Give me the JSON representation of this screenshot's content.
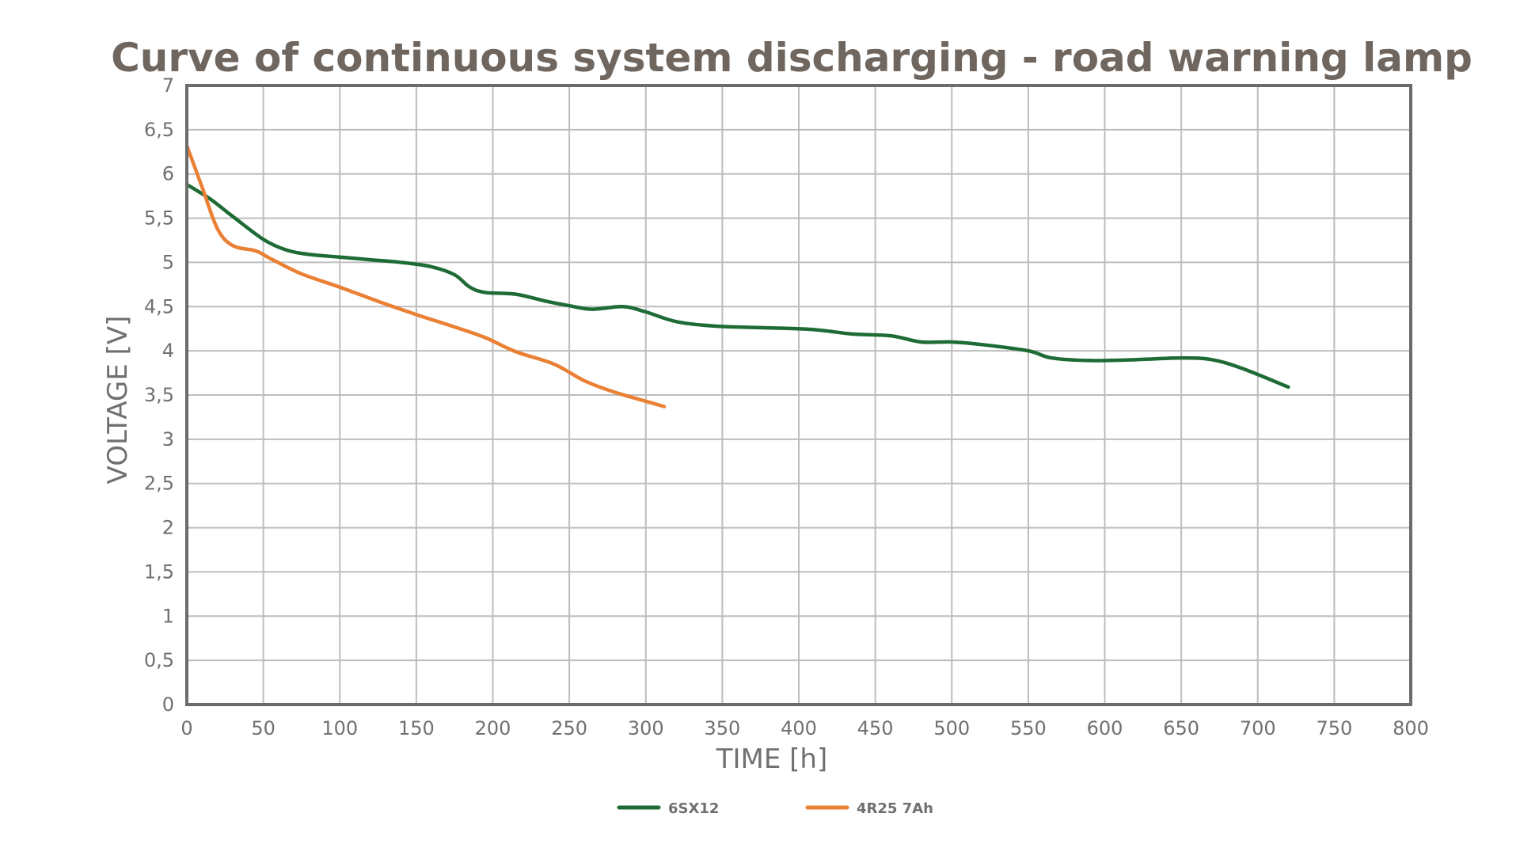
{
  "chart_data": {
    "type": "line",
    "title": "Curve of continuous system discharging - road warning lamp",
    "xlabel": "TIME [h]",
    "ylabel": "VOLTAGE [V]",
    "xlim": [
      0,
      800
    ],
    "ylim": [
      0,
      7
    ],
    "x_ticks": [
      0,
      50,
      100,
      150,
      200,
      250,
      300,
      350,
      400,
      450,
      500,
      550,
      600,
      650,
      700,
      750,
      800
    ],
    "y_ticks": [
      0,
      0.5,
      1,
      1.5,
      2,
      2.5,
      3,
      3.5,
      4,
      4.5,
      5,
      5.5,
      6,
      6.5,
      7
    ],
    "x_tick_labels": [
      "0",
      "50",
      "100",
      "150",
      "200",
      "250",
      "300",
      "350",
      "400",
      "450",
      "500",
      "550",
      "600",
      "650",
      "700",
      "750",
      "800"
    ],
    "y_tick_labels": [
      "0",
      "0,5",
      "1",
      "1,5",
      "2",
      "2,5",
      "3",
      "3,5",
      "4",
      "4,5",
      "5",
      "5,5",
      "6",
      "6,5",
      "7"
    ],
    "grid": true,
    "legend_position": "bottom",
    "colors": {
      "plot_frame": "#6b6b6b",
      "grid": "#bdbdbd",
      "title": "#6e665f",
      "text": "#707070"
    },
    "series": [
      {
        "name": "6SX12",
        "color": "#1e6b35",
        "points": [
          [
            0,
            5.88
          ],
          [
            15,
            5.72
          ],
          [
            30,
            5.52
          ],
          [
            50,
            5.26
          ],
          [
            65,
            5.14
          ],
          [
            80,
            5.09
          ],
          [
            100,
            5.06
          ],
          [
            120,
            5.03
          ],
          [
            140,
            5.0
          ],
          [
            160,
            4.95
          ],
          [
            175,
            4.86
          ],
          [
            185,
            4.72
          ],
          [
            195,
            4.66
          ],
          [
            215,
            4.64
          ],
          [
            235,
            4.56
          ],
          [
            250,
            4.51
          ],
          [
            265,
            4.47
          ],
          [
            285,
            4.5
          ],
          [
            300,
            4.44
          ],
          [
            320,
            4.33
          ],
          [
            345,
            4.28
          ],
          [
            380,
            4.26
          ],
          [
            410,
            4.24
          ],
          [
            435,
            4.19
          ],
          [
            460,
            4.17
          ],
          [
            480,
            4.1
          ],
          [
            500,
            4.1
          ],
          [
            520,
            4.07
          ],
          [
            550,
            4.0
          ],
          [
            565,
            3.92
          ],
          [
            590,
            3.89
          ],
          [
            620,
            3.9
          ],
          [
            650,
            3.92
          ],
          [
            670,
            3.9
          ],
          [
            690,
            3.8
          ],
          [
            720,
            3.59
          ]
        ]
      },
      {
        "name": "4R25 7Ah",
        "color": "#ea8034",
        "points": [
          [
            0,
            6.32
          ],
          [
            10,
            5.85
          ],
          [
            20,
            5.38
          ],
          [
            30,
            5.19
          ],
          [
            45,
            5.13
          ],
          [
            55,
            5.04
          ],
          [
            75,
            4.87
          ],
          [
            100,
            4.72
          ],
          [
            125,
            4.56
          ],
          [
            150,
            4.41
          ],
          [
            175,
            4.27
          ],
          [
            195,
            4.15
          ],
          [
            215,
            3.99
          ],
          [
            240,
            3.85
          ],
          [
            260,
            3.66
          ],
          [
            280,
            3.53
          ],
          [
            300,
            3.43
          ],
          [
            312,
            3.37
          ]
        ]
      }
    ]
  }
}
